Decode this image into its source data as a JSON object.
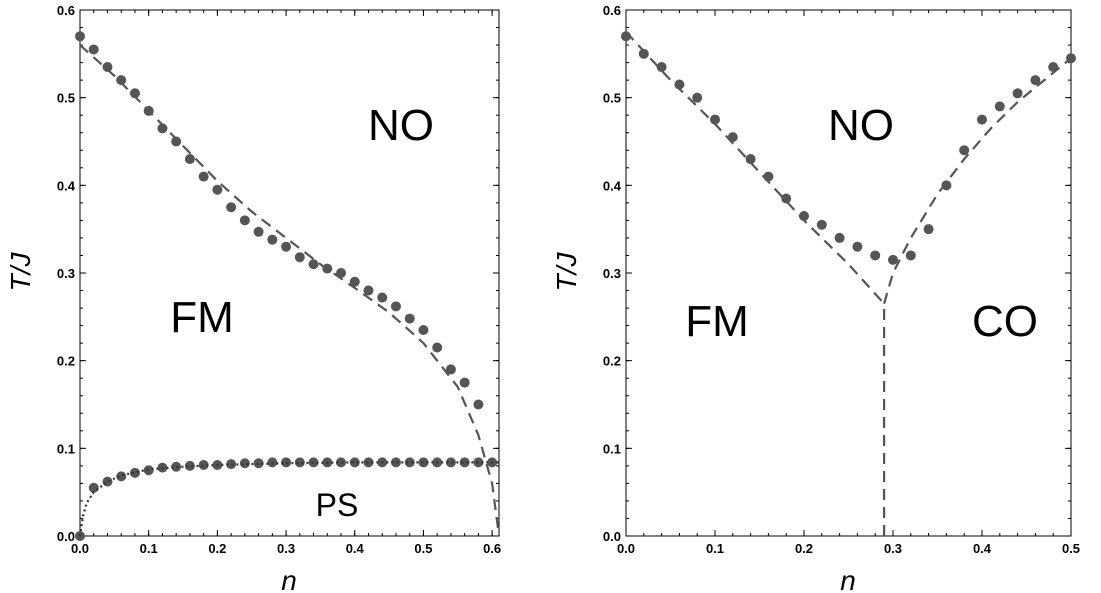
{
  "chart_data": [
    {
      "type": "scatter",
      "xlabel": "n",
      "ylabel": "T/J",
      "xlim": [
        0,
        0.61
      ],
      "ylim": [
        0,
        0.6
      ],
      "x_ticks": [
        "0.0",
        "0.1",
        "0.2",
        "0.3",
        "0.4",
        "0.5",
        "0.6"
      ],
      "y_ticks": [
        "0.0",
        "0.1",
        "0.2",
        "0.3",
        "0.4",
        "0.5",
        "0.6"
      ],
      "region_labels": [
        "NO",
        "FM",
        "PS"
      ],
      "colors": {
        "points": "#555555",
        "dashed": "#555555",
        "dotted": "#333333"
      },
      "series": [
        {
          "style": "points",
          "x": [
            0.0,
            0.02,
            0.04,
            0.06,
            0.08,
            0.1,
            0.12,
            0.14,
            0.16,
            0.18,
            0.2,
            0.22,
            0.24,
            0.26,
            0.28,
            0.3,
            0.32,
            0.34,
            0.36,
            0.38,
            0.4,
            0.42,
            0.44,
            0.46,
            0.48,
            0.5,
            0.52,
            0.54,
            0.56,
            0.58
          ],
          "y": [
            0.57,
            0.555,
            0.535,
            0.52,
            0.505,
            0.485,
            0.465,
            0.45,
            0.43,
            0.41,
            0.395,
            0.375,
            0.36,
            0.347,
            0.338,
            0.33,
            0.318,
            0.31,
            0.305,
            0.3,
            0.29,
            0.28,
            0.272,
            0.262,
            0.248,
            0.235,
            0.215,
            0.19,
            0.175,
            0.15
          ]
        },
        {
          "style": "points",
          "x": [
            0.0,
            0.02,
            0.04,
            0.06,
            0.08,
            0.1,
            0.12,
            0.14,
            0.16,
            0.18,
            0.2,
            0.22,
            0.24,
            0.26,
            0.28,
            0.3,
            0.32,
            0.34,
            0.36,
            0.38,
            0.4,
            0.42,
            0.44,
            0.46,
            0.48,
            0.5,
            0.52,
            0.54,
            0.56,
            0.58,
            0.6
          ],
          "y": [
            0.0,
            0.055,
            0.062,
            0.068,
            0.072,
            0.075,
            0.078,
            0.079,
            0.08,
            0.081,
            0.081,
            0.082,
            0.083,
            0.083,
            0.084,
            0.084,
            0.084,
            0.084,
            0.084,
            0.084,
            0.084,
            0.084,
            0.084,
            0.084,
            0.084,
            0.084,
            0.084,
            0.084,
            0.084,
            0.084,
            0.084
          ]
        },
        {
          "style": "dashed",
          "x": [
            0.0,
            0.05,
            0.1,
            0.15,
            0.2,
            0.25,
            0.3,
            0.35,
            0.4,
            0.45,
            0.5,
            0.55,
            0.58,
            0.6,
            0.61
          ],
          "y": [
            0.56,
            0.525,
            0.485,
            0.445,
            0.405,
            0.37,
            0.34,
            0.31,
            0.283,
            0.255,
            0.22,
            0.17,
            0.115,
            0.06,
            0.0
          ]
        },
        {
          "style": "dotted",
          "x": [
            0.0,
            0.005,
            0.01,
            0.02,
            0.04,
            0.06,
            0.1,
            0.15,
            0.2,
            0.3,
            0.4,
            0.5,
            0.6,
            0.61
          ],
          "y": [
            0.0,
            0.025,
            0.038,
            0.05,
            0.062,
            0.069,
            0.076,
            0.079,
            0.081,
            0.083,
            0.084,
            0.084,
            0.084,
            0.084
          ]
        }
      ]
    },
    {
      "type": "scatter",
      "xlabel": "n",
      "ylabel": "T/J",
      "xlim": [
        0,
        0.5
      ],
      "ylim": [
        0,
        0.6
      ],
      "x_ticks": [
        "0.0",
        "0.1",
        "0.2",
        "0.3",
        "0.4",
        "0.5"
      ],
      "y_ticks": [
        "0.0",
        "0.1",
        "0.2",
        "0.3",
        "0.4",
        "0.5",
        "0.6"
      ],
      "region_labels": [
        "NO",
        "FM",
        "CO"
      ],
      "colors": {
        "points": "#555555",
        "dashed": "#555555"
      },
      "series": [
        {
          "style": "points",
          "x": [
            0.0,
            0.02,
            0.04,
            0.06,
            0.08,
            0.1,
            0.12,
            0.14,
            0.16,
            0.18,
            0.2,
            0.22,
            0.24,
            0.26,
            0.28,
            0.3,
            0.32,
            0.34,
            0.36,
            0.38,
            0.4,
            0.42,
            0.44,
            0.46,
            0.48,
            0.5
          ],
          "y": [
            0.57,
            0.55,
            0.535,
            0.515,
            0.5,
            0.475,
            0.455,
            0.43,
            0.41,
            0.385,
            0.365,
            0.355,
            0.34,
            0.33,
            0.32,
            0.315,
            0.32,
            0.35,
            0.4,
            0.44,
            0.475,
            0.49,
            0.505,
            0.52,
            0.535,
            0.545
          ]
        },
        {
          "style": "dashed",
          "x": [
            0.0,
            0.05,
            0.1,
            0.15,
            0.2,
            0.25,
            0.29
          ],
          "y": [
            0.575,
            0.52,
            0.47,
            0.415,
            0.36,
            0.31,
            0.265
          ]
        },
        {
          "style": "dashed",
          "x": [
            0.29,
            0.3,
            0.32,
            0.35,
            0.38,
            0.41,
            0.44,
            0.47,
            0.5
          ],
          "y": [
            0.265,
            0.3,
            0.34,
            0.39,
            0.43,
            0.465,
            0.495,
            0.52,
            0.545
          ]
        },
        {
          "style": "dashed",
          "x": [
            0.29,
            0.29
          ],
          "y": [
            0.0,
            0.265
          ]
        }
      ]
    }
  ]
}
